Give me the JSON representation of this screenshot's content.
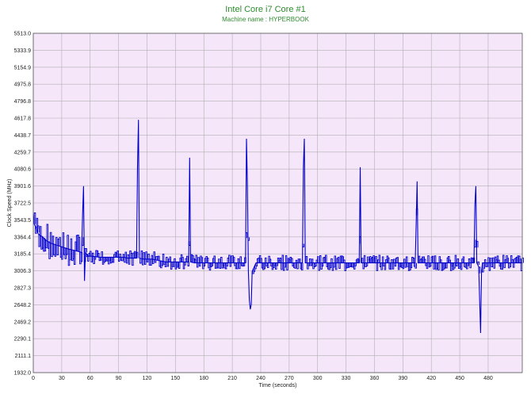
{
  "chart_data": {
    "type": "line",
    "title": "Intel Core i7 Core #1",
    "subtitle": "Machine name : HYPERBOOK",
    "xlabel": "Time (seconds)",
    "ylabel": "Clock Speed (MHz)",
    "xlim": [
      0,
      516
    ],
    "ylim": [
      1932.0,
      5513.0
    ],
    "x_ticks": [
      0,
      30,
      60,
      90,
      120,
      150,
      180,
      210,
      240,
      270,
      300,
      330,
      360,
      390,
      420,
      450,
      480
    ],
    "y_ticks": [
      "1932.0",
      "2111.1",
      "2290.1",
      "2469.2",
      "2648.2",
      "2827.3",
      "3006.3",
      "3185.4",
      "3364.4",
      "3543.5",
      "3722.5",
      "3901.6",
      "4080.6",
      "4259.7",
      "4438.7",
      "4617.8",
      "4796.8",
      "4975.8",
      "5154.9",
      "5333.9",
      "5513.0"
    ],
    "grid": true,
    "series": [
      {
        "color": "#0000cc",
        "points": [
          [
            0,
            3600
          ],
          [
            1,
            3500
          ],
          [
            2,
            3480
          ],
          [
            3,
            3460
          ],
          [
            5,
            3400
          ],
          [
            7,
            3380
          ],
          [
            9,
            3370
          ],
          [
            11,
            3350
          ],
          [
            13,
            3330
          ],
          [
            15,
            3320
          ],
          [
            18,
            3300
          ],
          [
            21,
            3290
          ],
          [
            24,
            3280
          ],
          [
            27,
            3270
          ],
          [
            30,
            3260
          ],
          [
            33,
            3250
          ],
          [
            36,
            3240
          ],
          [
            40,
            3230
          ],
          [
            44,
            3220
          ],
          [
            48,
            3210
          ],
          [
            51,
            3200
          ],
          [
            52,
            3600
          ],
          [
            53,
            3900
          ],
          [
            54,
            2900
          ],
          [
            55,
            3200
          ],
          [
            58,
            3160
          ],
          [
            62,
            3160
          ],
          [
            66,
            3155
          ],
          [
            70,
            3150
          ],
          [
            75,
            3150
          ],
          [
            80,
            3150
          ],
          [
            85,
            3150
          ],
          [
            90,
            3150
          ],
          [
            95,
            3150
          ],
          [
            100,
            3140
          ],
          [
            105,
            3140
          ],
          [
            109,
            3140
          ],
          [
            110,
            4100
          ],
          [
            111,
            4600
          ],
          [
            112,
            3140
          ],
          [
            116,
            3130
          ],
          [
            120,
            3130
          ],
          [
            125,
            3130
          ],
          [
            130,
            3120
          ],
          [
            135,
            3110
          ],
          [
            140,
            3100
          ],
          [
            145,
            3100
          ],
          [
            150,
            3100
          ],
          [
            155,
            3100
          ],
          [
            160,
            3100
          ],
          [
            164,
            3100
          ],
          [
            165,
            4200
          ],
          [
            166,
            3100
          ],
          [
            170,
            3090
          ],
          [
            175,
            3090
          ],
          [
            180,
            3090
          ],
          [
            185,
            3090
          ],
          [
            190,
            3090
          ],
          [
            195,
            3090
          ],
          [
            200,
            3090
          ],
          [
            205,
            3090
          ],
          [
            210,
            3090
          ],
          [
            215,
            3090
          ],
          [
            220,
            3090
          ],
          [
            224,
            3090
          ],
          [
            225,
            4400
          ],
          [
            226,
            3900
          ],
          [
            227,
            3000
          ],
          [
            228,
            2700
          ],
          [
            229,
            2600
          ],
          [
            230,
            2650
          ],
          [
            231,
            3000
          ],
          [
            235,
            3090
          ],
          [
            240,
            3090
          ],
          [
            245,
            3090
          ],
          [
            250,
            3090
          ],
          [
            255,
            3090
          ],
          [
            260,
            3090
          ],
          [
            265,
            3090
          ],
          [
            270,
            3090
          ],
          [
            275,
            3090
          ],
          [
            280,
            3090
          ],
          [
            284,
            3090
          ],
          [
            285,
            4100
          ],
          [
            286,
            4400
          ],
          [
            287,
            3090
          ],
          [
            290,
            3090
          ],
          [
            295,
            3090
          ],
          [
            300,
            3090
          ],
          [
            305,
            3090
          ],
          [
            310,
            3090
          ],
          [
            315,
            3090
          ],
          [
            320,
            3090
          ],
          [
            325,
            3090
          ],
          [
            330,
            3090
          ],
          [
            335,
            3090
          ],
          [
            340,
            3090
          ],
          [
            344,
            3090
          ],
          [
            345,
            4100
          ],
          [
            346,
            3090
          ],
          [
            350,
            3090
          ],
          [
            355,
            3090
          ],
          [
            360,
            3090
          ],
          [
            365,
            3090
          ],
          [
            370,
            3090
          ],
          [
            375,
            3090
          ],
          [
            380,
            3090
          ],
          [
            385,
            3090
          ],
          [
            390,
            3090
          ],
          [
            395,
            3090
          ],
          [
            400,
            3090
          ],
          [
            403,
            3090
          ],
          [
            404,
            3500
          ],
          [
            405,
            3950
          ],
          [
            406,
            3090
          ],
          [
            410,
            3090
          ],
          [
            415,
            3090
          ],
          [
            420,
            3090
          ],
          [
            425,
            3090
          ],
          [
            430,
            3090
          ],
          [
            435,
            3090
          ],
          [
            440,
            3090
          ],
          [
            445,
            3090
          ],
          [
            450,
            3090
          ],
          [
            455,
            3090
          ],
          [
            460,
            3090
          ],
          [
            465,
            3090
          ],
          [
            466,
            3700
          ],
          [
            467,
            3900
          ],
          [
            468,
            3090
          ],
          [
            470,
            3050
          ],
          [
            471,
            2700
          ],
          [
            472,
            2350
          ],
          [
            473,
            3000
          ],
          [
            474,
            3090
          ],
          [
            478,
            3090
          ],
          [
            482,
            3090
          ],
          [
            486,
            3090
          ],
          [
            490,
            3090
          ],
          [
            495,
            3090
          ],
          [
            500,
            3090
          ],
          [
            505,
            3090
          ],
          [
            510,
            3090
          ],
          [
            516,
            3090
          ]
        ]
      }
    ]
  }
}
